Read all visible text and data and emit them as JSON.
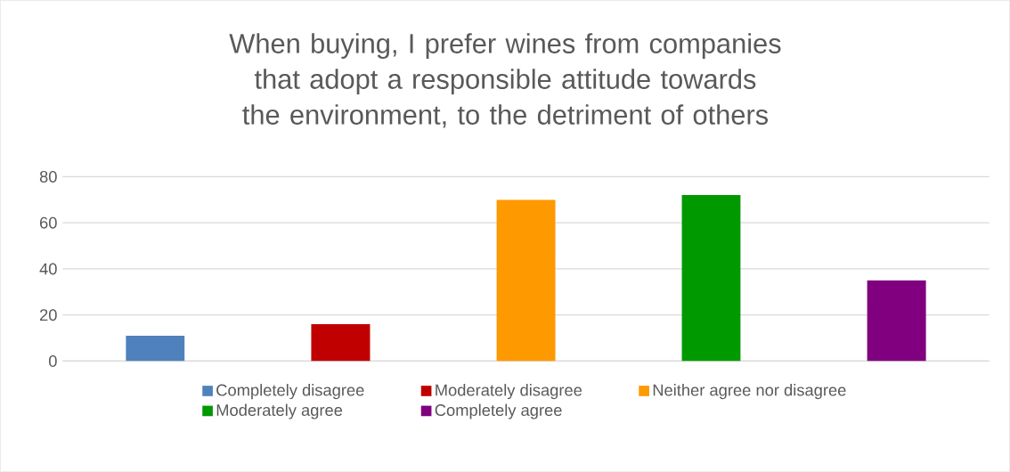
{
  "chart_data": {
    "type": "bar",
    "title": "When buying, I prefer wines from companies that adopt a responsible attitude towards the environment, to the detriment of others",
    "categories": [
      null
    ],
    "series": [
      {
        "name": "Completely disagree",
        "color": "#4f81bd",
        "values": [
          11
        ]
      },
      {
        "name": "Moderately disagree",
        "color": "#c00000",
        "values": [
          16
        ]
      },
      {
        "name": "Neither agree nor disagree",
        "color": "#ff9900",
        "values": [
          70
        ]
      },
      {
        "name": "Moderately agree",
        "color": "#009900",
        "values": [
          72
        ]
      },
      {
        "name": "Completely agree",
        "color": "#800080",
        "values": [
          35
        ]
      }
    ],
    "ylim": [
      0,
      80
    ],
    "yticks": [
      0,
      20,
      40,
      60,
      80
    ],
    "grid": "y",
    "legend": "bottom"
  }
}
